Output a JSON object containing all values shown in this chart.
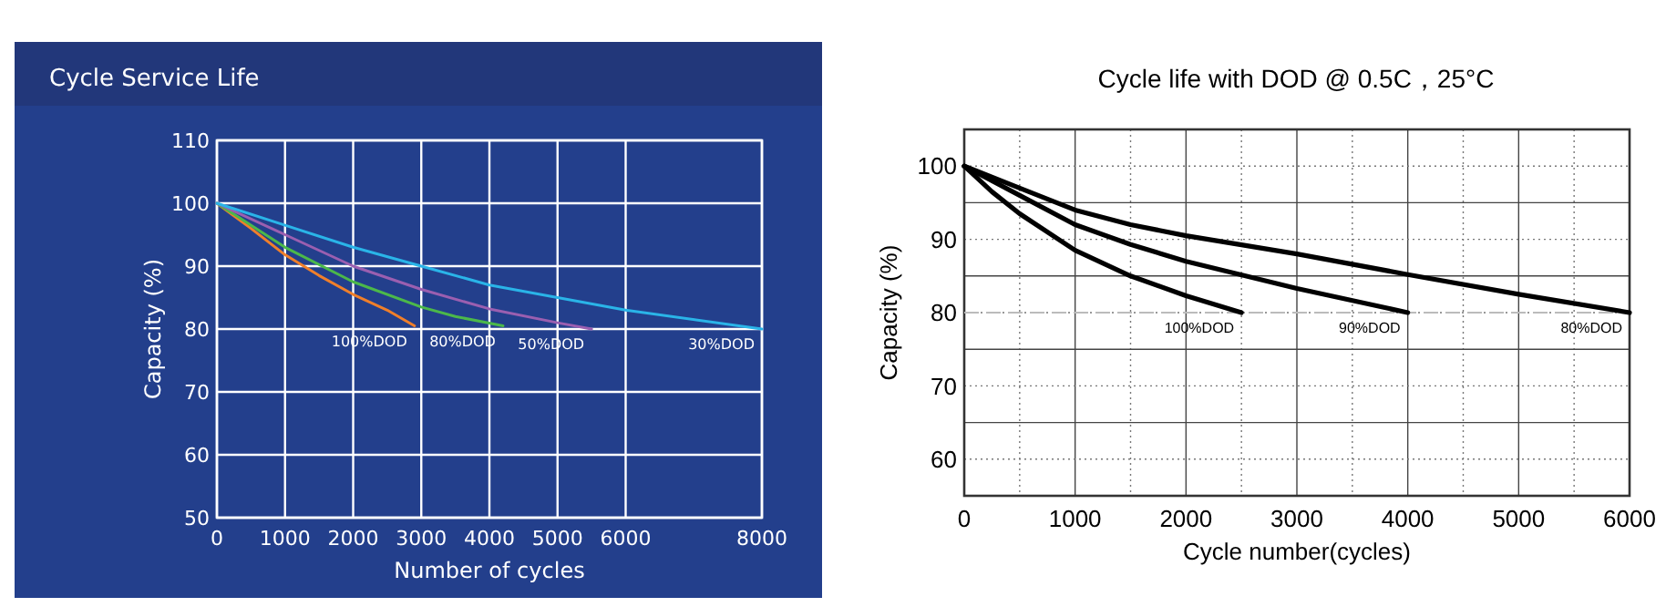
{
  "chart_data": [
    {
      "type": "line",
      "title": "Cycle Service Life",
      "xlabel": "Number of cycles",
      "ylabel": "Capacity (%)",
      "xlim": [
        0,
        8000
      ],
      "ylim": [
        50,
        110
      ],
      "xticks": [
        0,
        1000,
        2000,
        3000,
        4000,
        5000,
        6000,
        8000
      ],
      "yticks": [
        50,
        60,
        70,
        80,
        90,
        100,
        110
      ],
      "grid": true,
      "series": [
        {
          "name": "100%DOD",
          "color": "#f07f2a",
          "x": [
            0,
            500,
            1000,
            1500,
            2000,
            2500,
            2900
          ],
          "values": [
            100,
            96,
            91.8,
            88.5,
            85.5,
            83,
            80.5
          ]
        },
        {
          "name": "80%DOD",
          "color": "#4cb84a",
          "x": [
            0,
            1000,
            2000,
            3000,
            3500,
            4200
          ],
          "values": [
            100,
            93,
            87.5,
            83.5,
            82,
            80.5
          ]
        },
        {
          "name": "50%DOD",
          "color": "#9b5fb0",
          "x": [
            0,
            1000,
            2000,
            3000,
            4000,
            5000,
            5500
          ],
          "values": [
            100,
            95,
            90,
            86.3,
            83.2,
            81,
            80
          ]
        },
        {
          "name": "30%DOD",
          "color": "#2ab4e8",
          "x": [
            0,
            1000,
            2000,
            3000,
            4000,
            5000,
            6000,
            8000
          ],
          "values": [
            100,
            96.5,
            93,
            90,
            87,
            85,
            83,
            80
          ]
        }
      ]
    },
    {
      "type": "line",
      "title": "Cycle life with DOD @ 0.5C，25°C",
      "xlabel": "Cycle number(cycles)",
      "ylabel": "Capacity (%)",
      "xlim": [
        0,
        6000
      ],
      "ylim": [
        55,
        105
      ],
      "xticks": [
        0,
        1000,
        2000,
        3000,
        4000,
        5000,
        6000
      ],
      "yticks": [
        60,
        70,
        80,
        90,
        100
      ],
      "grid": true,
      "ref_lines": [
        {
          "axis": "y",
          "value": 80,
          "color": "#bbbbbb",
          "line_style": "dashed"
        }
      ],
      "series": [
        {
          "name": "100%DOD",
          "color": "#000000",
          "x": [
            0,
            250,
            500,
            1000,
            1500,
            2000,
            2500
          ],
          "values": [
            100,
            96.5,
            93.5,
            88.5,
            85,
            82.3,
            80
          ]
        },
        {
          "name": "90%DOD",
          "color": "#000000",
          "x": [
            0,
            500,
            1000,
            1500,
            2000,
            3000,
            4000
          ],
          "values": [
            100,
            96,
            92,
            89.3,
            87,
            83.3,
            80
          ]
        },
        {
          "name": "80%DOD",
          "color": "#000000",
          "x": [
            0,
            500,
            1000,
            1500,
            2000,
            3000,
            4000,
            5000,
            6000
          ],
          "values": [
            100,
            97,
            94,
            92,
            90.5,
            88,
            85.2,
            82.5,
            80
          ]
        }
      ]
    }
  ]
}
